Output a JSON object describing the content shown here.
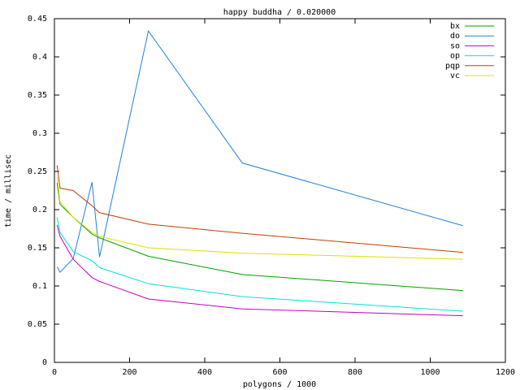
{
  "chart_data": {
    "type": "line",
    "title": "happy buddha / 0.020000",
    "x_label": "polygons / 1000",
    "y_label": "time / millisec",
    "x": [
      7,
      15,
      50,
      100,
      120,
      250,
      500,
      1087
    ],
    "series": [
      {
        "name": "bx",
        "color": "#00a000",
        "values": [
          0.235,
          0.207,
          0.19,
          0.168,
          0.163,
          0.139,
          0.115,
          0.094
        ]
      },
      {
        "name": "do",
        "color": "#2080e0",
        "values": [
          0.125,
          0.118,
          0.136,
          0.236,
          0.138,
          0.434,
          0.261,
          0.179
        ]
      },
      {
        "name": "so",
        "color": "#c000c0",
        "values": [
          0.18,
          0.165,
          0.135,
          0.111,
          0.106,
          0.083,
          0.07,
          0.061
        ]
      },
      {
        "name": "op",
        "color": "#00e0e0",
        "values": [
          0.19,
          0.17,
          0.145,
          0.133,
          0.124,
          0.103,
          0.086,
          0.067
        ]
      },
      {
        "name": "pqp",
        "color": "#c04000",
        "values": [
          0.258,
          0.228,
          0.225,
          0.205,
          0.196,
          0.181,
          0.169,
          0.144
        ]
      },
      {
        "name": "vc",
        "color": "#e0e000",
        "values": [
          0.243,
          0.21,
          0.19,
          0.17,
          0.165,
          0.15,
          0.143,
          0.135
        ]
      }
    ],
    "xlim": [
      0,
      1200
    ],
    "xticks": [
      0,
      200,
      400,
      600,
      800,
      1000,
      1200
    ],
    "ylim": [
      0,
      0.45
    ],
    "yticks": [
      0,
      0.05,
      0.1,
      0.15,
      0.2,
      0.25,
      0.3,
      0.35,
      0.4,
      0.45
    ],
    "legend": "top-right"
  }
}
